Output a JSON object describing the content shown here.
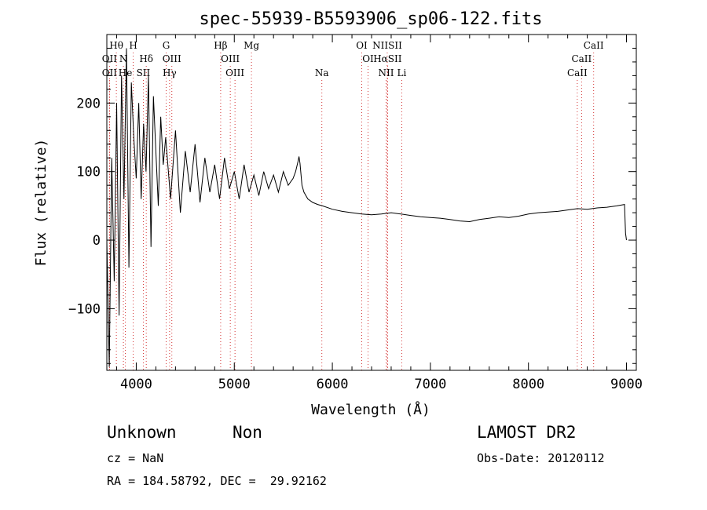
{
  "chart_data": {
    "type": "line",
    "title": "spec-55939-B5593906_sp06-122.fits",
    "xlabel": "Wavelength (Å)",
    "ylabel": "Flux (relative)",
    "xlim": [
      3700,
      9100
    ],
    "ylim": [
      -190,
      300
    ],
    "xticks": [
      4000,
      5000,
      6000,
      7000,
      8000,
      9000
    ],
    "yticks": [
      -100,
      0,
      100,
      200
    ],
    "grid": false,
    "series": [
      {
        "color": "#000000",
        "x": [
          3700,
          3725,
          3750,
          3775,
          3800,
          3825,
          3850,
          3875,
          3900,
          3925,
          3950,
          3975,
          4000,
          4025,
          4050,
          4075,
          4100,
          4125,
          4150,
          4175,
          4200,
          4225,
          4250,
          4275,
          4300,
          4350,
          4400,
          4450,
          4500,
          4550,
          4600,
          4650,
          4700,
          4750,
          4800,
          4850,
          4900,
          4950,
          5000,
          5050,
          5100,
          5150,
          5200,
          5250,
          5300,
          5350,
          5400,
          5450,
          5500,
          5550,
          5600,
          5625,
          5650,
          5660,
          5670,
          5690,
          5710,
          5750,
          5800,
          5850,
          5900,
          6000,
          6100,
          6200,
          6300,
          6400,
          6500,
          6600,
          6700,
          6800,
          6900,
          7000,
          7100,
          7200,
          7300,
          7400,
          7500,
          7600,
          7700,
          7800,
          7900,
          8000,
          8100,
          8200,
          8300,
          8400,
          8500,
          8600,
          8700,
          8800,
          8900,
          8980,
          8990,
          9000
        ],
        "y": [
          0,
          -185,
          120,
          -60,
          200,
          -110,
          240,
          60,
          280,
          -40,
          230,
          150,
          90,
          200,
          60,
          170,
          100,
          240,
          -10,
          210,
          130,
          50,
          180,
          110,
          150,
          60,
          160,
          40,
          130,
          70,
          140,
          55,
          120,
          70,
          110,
          60,
          120,
          75,
          100,
          60,
          110,
          70,
          95,
          65,
          100,
          75,
          95,
          70,
          100,
          80,
          90,
          100,
          115,
          122,
          112,
          80,
          70,
          60,
          55,
          52,
          50,
          45,
          42,
          40,
          38,
          37,
          38,
          40,
          38,
          36,
          34,
          33,
          32,
          30,
          28,
          27,
          30,
          32,
          34,
          33,
          35,
          38,
          40,
          41,
          42,
          44,
          46,
          45,
          47,
          48,
          50,
          52,
          10,
          0
        ]
      }
    ],
    "emission_lines": [
      {
        "label": "Hθ",
        "x": 3797,
        "row": 0
      },
      {
        "label": "H",
        "x": 3969,
        "row": 0
      },
      {
        "label": "G",
        "x": 4305,
        "row": 0
      },
      {
        "label": "Hβ",
        "x": 4861,
        "row": 0
      },
      {
        "label": "Mg",
        "x": 5175,
        "row": 0
      },
      {
        "label": "OI",
        "x": 6300,
        "row": 0
      },
      {
        "label": "NIISII",
        "x": 6560,
        "row": 0
      },
      {
        "label": "CaII",
        "x": 8665,
        "row": 0
      },
      {
        "label": "OII",
        "x": 3727,
        "row": 1
      },
      {
        "label": "N",
        "x": 3869,
        "row": 1
      },
      {
        "label": "Hδ",
        "x": 4102,
        "row": 1
      },
      {
        "label": "OIII",
        "x": 4363,
        "row": 1
      },
      {
        "label": "OIII",
        "x": 4959,
        "row": 1
      },
      {
        "label": "OI",
        "x": 6364,
        "row": 1
      },
      {
        "label": "HαSII",
        "x": 6563,
        "row": 1
      },
      {
        "label": "CaII",
        "x": 8542,
        "row": 1
      },
      {
        "label": "OII",
        "x": 3727,
        "row": 2
      },
      {
        "label": "He",
        "x": 3889,
        "row": 2
      },
      {
        "label": "SII",
        "x": 4072,
        "row": 2
      },
      {
        "label": "Hγ",
        "x": 4340,
        "row": 2
      },
      {
        "label": "OIII",
        "x": 5007,
        "row": 2
      },
      {
        "label": "Na",
        "x": 5893,
        "row": 2
      },
      {
        "label": "NII",
        "x": 6548,
        "row": 2
      },
      {
        "label": "Li",
        "x": 6708,
        "row": 2
      },
      {
        "label": "CaII",
        "x": 8498,
        "row": 2
      }
    ]
  },
  "info": {
    "class": "Unknown",
    "subclass": "Non",
    "survey": "LAMOST DR2",
    "cz": "cz = NaN",
    "obs_date": "Obs-Date: 20120112",
    "radec": "RA = 184.58792, DEC =  29.92162"
  }
}
